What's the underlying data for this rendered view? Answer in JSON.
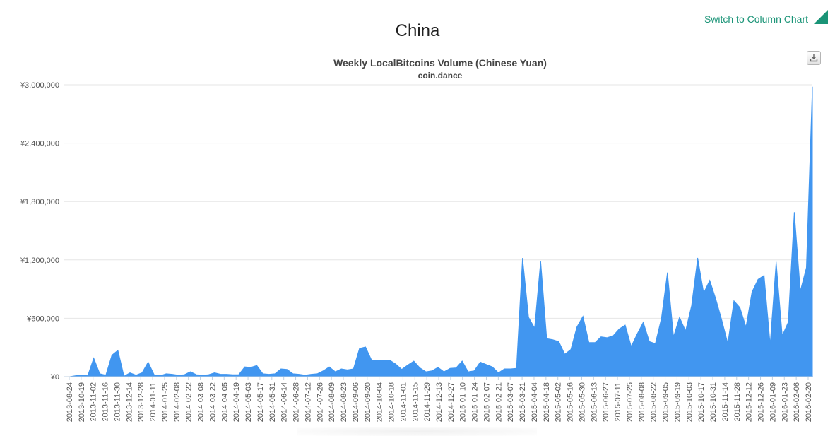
{
  "page": {
    "title": "China",
    "switch_label": "Switch to Column Chart"
  },
  "colors": {
    "area": "#4196f0",
    "accent": "#1a9477",
    "grid": "#e6e6e6"
  },
  "icons": {
    "export": "download-icon",
    "corner": "triangle-corner-icon"
  },
  "chart_data": {
    "type": "area",
    "title": "Weekly LocalBitcoins Volume (Chinese Yuan)",
    "subtitle": "coin.dance",
    "ylim": [
      0,
      3000000
    ],
    "y_ticks": [
      {
        "value": 0,
        "label": "¥0"
      },
      {
        "value": 600000,
        "label": "¥600,000"
      },
      {
        "value": 1200000,
        "label": "¥1,200,000"
      },
      {
        "value": 1800000,
        "label": "¥1,800,000"
      },
      {
        "value": 2400000,
        "label": "¥2,400,000"
      },
      {
        "value": 3000000,
        "label": "¥3,000,000"
      }
    ],
    "grid": true,
    "x_tick_labels": [
      "2013-08-24",
      "2013-10-19",
      "2013-11-02",
      "2013-11-16",
      "2013-11-30",
      "2013-12-14",
      "2013-12-28",
      "2014-01-11",
      "2014-01-25",
      "2014-02-08",
      "2014-02-22",
      "2014-03-08",
      "2014-03-22",
      "2014-04-05",
      "2014-04-19",
      "2014-05-03",
      "2014-05-17",
      "2014-05-31",
      "2014-06-14",
      "2014-06-28",
      "2014-07-12",
      "2014-07-26",
      "2014-08-09",
      "2014-08-23",
      "2014-09-06",
      "2014-09-20",
      "2014-10-04",
      "2014-10-18",
      "2014-11-01",
      "2014-11-15",
      "2014-11-29",
      "2014-12-13",
      "2014-12-27",
      "2015-01-10",
      "2015-01-24",
      "2015-02-07",
      "2015-02-21",
      "2015-03-07",
      "2015-03-21",
      "2015-04-04",
      "2015-04-18",
      "2015-05-02",
      "2015-05-16",
      "2015-05-30",
      "2015-06-13",
      "2015-06-27",
      "2015-07-11",
      "2015-07-25",
      "2015-08-08",
      "2015-08-22",
      "2015-09-05",
      "2015-09-19",
      "2015-10-03",
      "2015-10-17",
      "2015-10-31",
      "2015-11-14",
      "2015-11-28",
      "2015-12-12",
      "2015-12-26",
      "2016-01-09",
      "2016-01-23",
      "2016-02-06",
      "2016-02-20"
    ],
    "values": [
      0,
      0,
      10000,
      15000,
      10000,
      190000,
      30000,
      15000,
      220000,
      270000,
      5000,
      40000,
      15000,
      40000,
      150000,
      20000,
      10000,
      30000,
      25000,
      15000,
      20000,
      50000,
      20000,
      15000,
      20000,
      40000,
      25000,
      25000,
      20000,
      20000,
      100000,
      95000,
      115000,
      30000,
      25000,
      30000,
      80000,
      75000,
      30000,
      25000,
      15000,
      25000,
      30000,
      60000,
      100000,
      50000,
      80000,
      70000,
      80000,
      290000,
      305000,
      170000,
      170000,
      165000,
      170000,
      130000,
      75000,
      120000,
      160000,
      90000,
      50000,
      60000,
      95000,
      50000,
      85000,
      90000,
      160000,
      50000,
      60000,
      150000,
      125000,
      100000,
      40000,
      80000,
      80000,
      85000,
      1220000,
      610000,
      500000,
      1190000,
      390000,
      380000,
      360000,
      230000,
      280000,
      510000,
      620000,
      350000,
      350000,
      410000,
      400000,
      420000,
      490000,
      530000,
      310000,
      440000,
      560000,
      360000,
      340000,
      600000,
      1070000,
      410000,
      610000,
      470000,
      730000,
      1220000,
      860000,
      990000,
      800000,
      580000,
      340000,
      780000,
      710000,
      510000,
      870000,
      1000000,
      1040000,
      330000,
      1180000,
      420000,
      560000,
      1690000,
      880000,
      1120000,
      2980000
    ]
  }
}
